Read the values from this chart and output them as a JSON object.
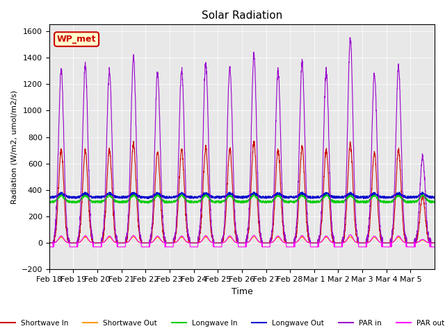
{
  "title": "Solar Radiation",
  "ylabel": "Radiation (W/m2, umol/m2/s)",
  "xlabel": "Time",
  "ylim": [
    -200,
    1650
  ],
  "yticks": [
    -200,
    0,
    200,
    400,
    600,
    800,
    1000,
    1200,
    1400,
    1600
  ],
  "legend_label": "WP_met",
  "plot_bg_color": "#e8e8e8",
  "series": {
    "shortwave_in": {
      "color": "#cc0000",
      "label": "Shortwave In"
    },
    "shortwave_out": {
      "color": "#ff9900",
      "label": "Shortwave Out"
    },
    "longwave_in": {
      "color": "#00cc00",
      "label": "Longwave In"
    },
    "longwave_out": {
      "color": "#0000cc",
      "label": "Longwave Out"
    },
    "par_in": {
      "color": "#9900cc",
      "label": "PAR in"
    },
    "par_out": {
      "color": "#ff00ff",
      "label": "PAR out"
    }
  },
  "xtick_labels": [
    "Feb 18",
    "Feb 19",
    "Feb 20",
    "Feb 21",
    "Feb 22",
    "Feb 23",
    "Feb 24",
    "Feb 25",
    "Feb 26",
    "Feb 27",
    "Feb 28",
    "Mar 1",
    "Mar 2",
    "Mar 3",
    "Mar 4",
    "Mar 5"
  ],
  "n_days": 16,
  "day_peak_sw_in": [
    700,
    700,
    700,
    750,
    680,
    700,
    720,
    710,
    760,
    700,
    720,
    700,
    750,
    680,
    700,
    350
  ],
  "day_peak_par_in": [
    1300,
    1340,
    1300,
    1400,
    1280,
    1310,
    1360,
    1330,
    1420,
    1300,
    1360,
    1300,
    1550,
    1280,
    1330,
    650
  ]
}
